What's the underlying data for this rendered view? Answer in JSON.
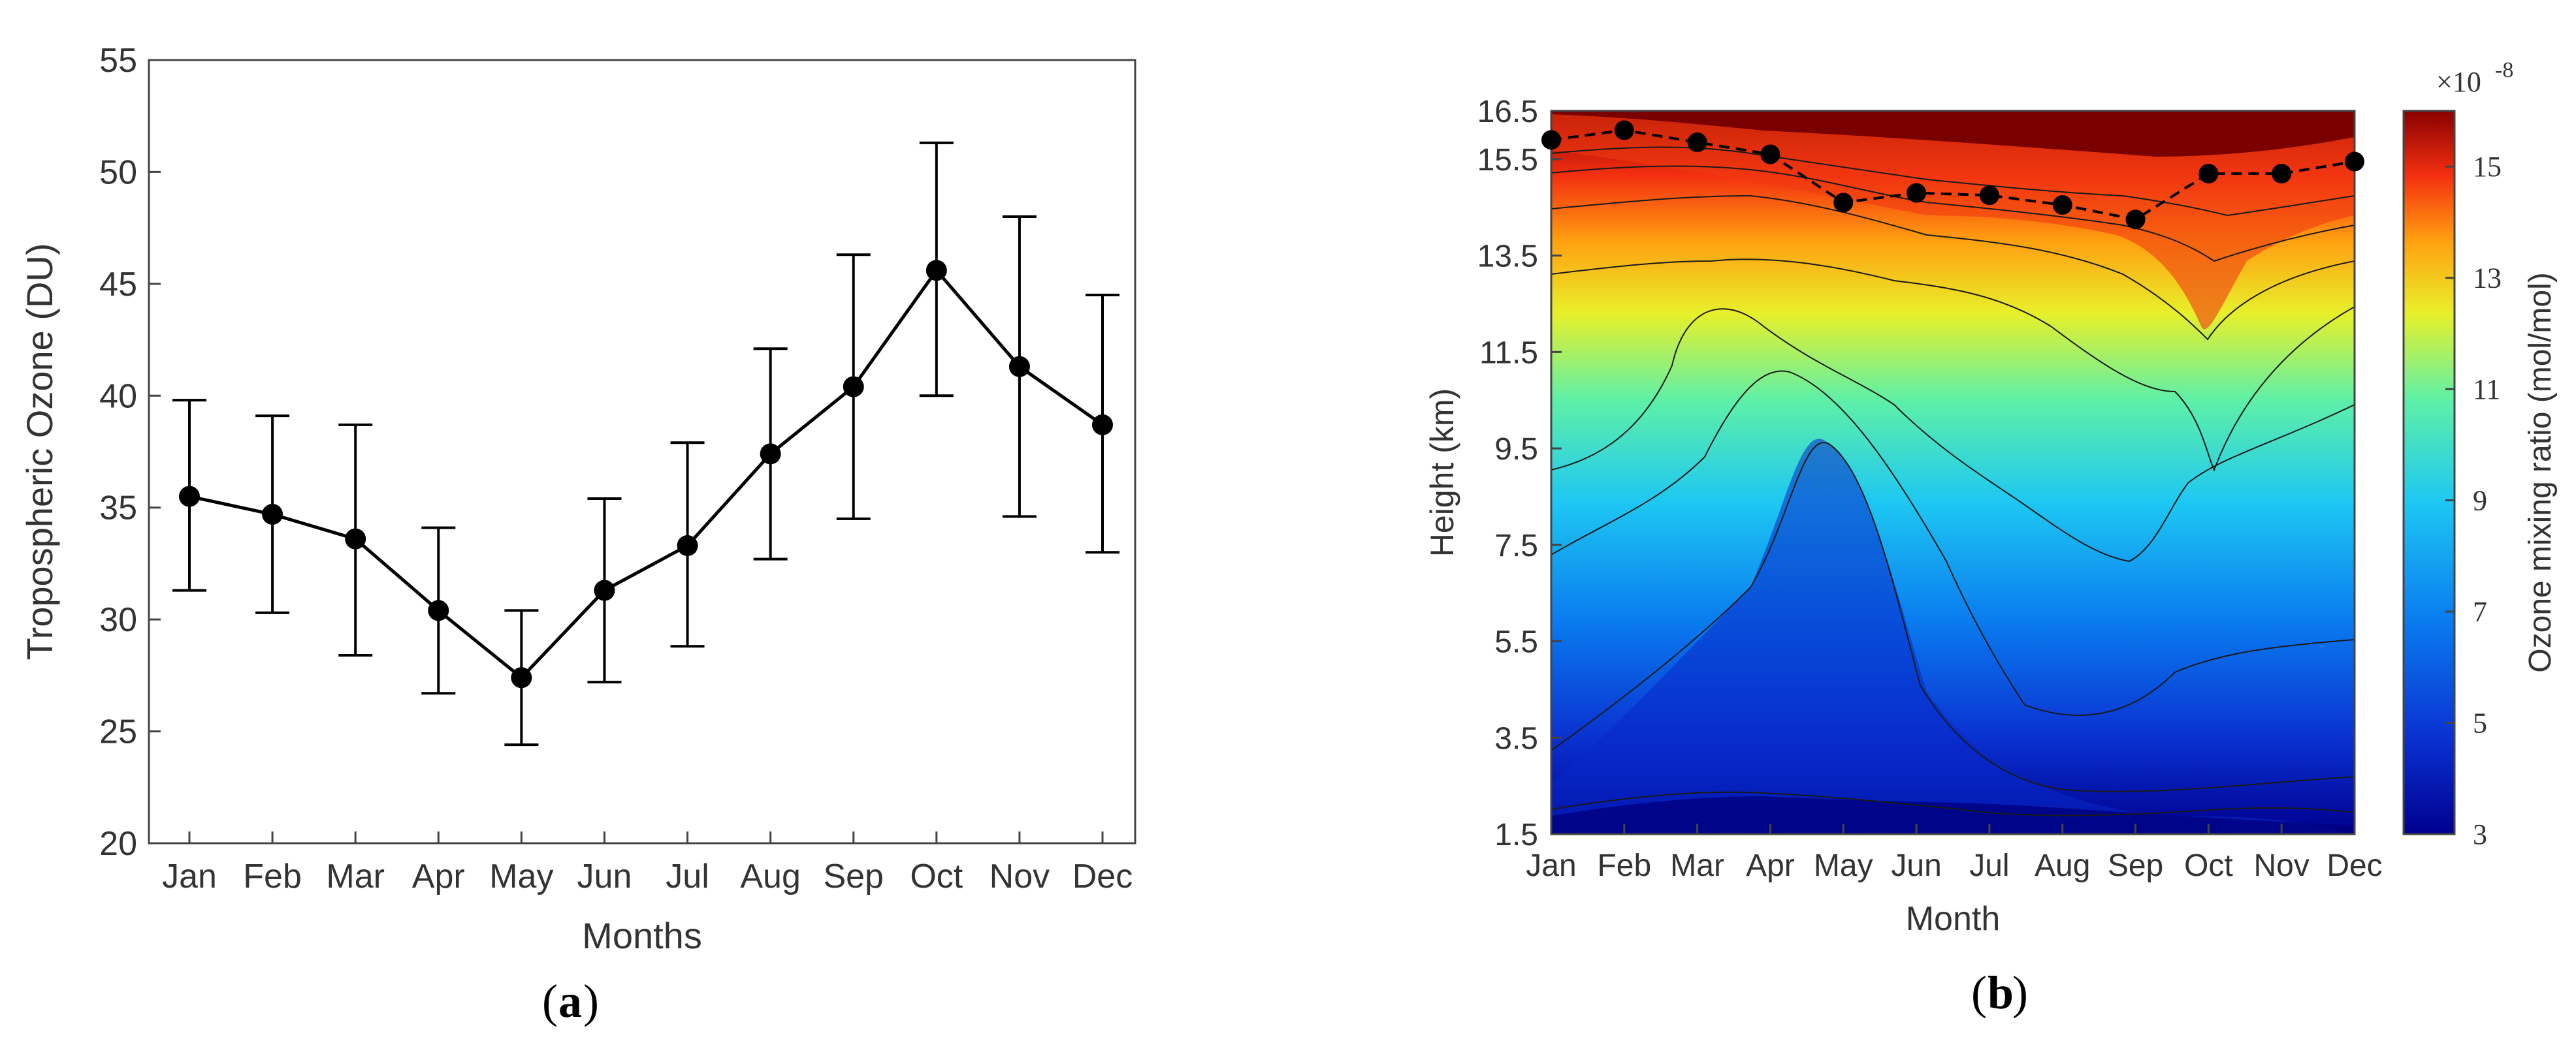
{
  "chart_data": [
    {
      "type": "line",
      "panel_label": "a",
      "title": "",
      "xlabel": "Months",
      "ylabel": "Tropospheric Ozone (DU)",
      "ylim": [
        20,
        55
      ],
      "y_ticks": [
        "20",
        "25",
        "30",
        "35",
        "40",
        "45",
        "50",
        "55"
      ],
      "categories": [
        "Jan",
        "Feb",
        "Mar",
        "Apr",
        "May",
        "Jun",
        "Jul",
        "Aug",
        "Sep",
        "Oct",
        "Nov",
        "Dec"
      ],
      "series": [
        {
          "name": "Tropospheric Ozone",
          "values": [
            35.5,
            34.7,
            33.6,
            30.4,
            27.4,
            31.3,
            33.3,
            37.4,
            40.4,
            45.6,
            41.3,
            38.7
          ],
          "error_upper": [
            39.8,
            39.1,
            38.7,
            34.1,
            30.4,
            35.4,
            37.9,
            42.1,
            46.3,
            51.3,
            48.0,
            44.5
          ],
          "error_lower": [
            31.3,
            30.3,
            28.4,
            26.7,
            24.4,
            27.2,
            28.8,
            32.7,
            34.5,
            40.0,
            34.6,
            33.0
          ]
        }
      ]
    },
    {
      "type": "heatmap",
      "panel_label": "b",
      "title": "",
      "xlabel": "Month",
      "ylabel": "Height (km)",
      "categories": [
        "Jan",
        "Feb",
        "Mar",
        "Apr",
        "May",
        "Jun",
        "Jul",
        "Aug",
        "Sep",
        "Oct",
        "Nov",
        "Dec"
      ],
      "ylim": [
        1.5,
        16.5
      ],
      "y_ticks": [
        "1.5",
        "3.5",
        "5.5",
        "7.5",
        "9.5",
        "11.5",
        "13.5",
        "15.5",
        "16.5"
      ],
      "colorbar": {
        "label": "Ozone mixing ratio (mol/mol)",
        "multiplier": "×10",
        "exponent": "-8",
        "range": [
          3,
          16
        ],
        "ticks": [
          "3",
          "5",
          "7",
          "9",
          "11",
          "13",
          "15"
        ]
      },
      "tropopause_height_km": [
        15.9,
        16.1,
        15.85,
        15.6,
        14.6,
        14.8,
        14.75,
        14.55,
        14.25,
        15.2,
        15.2,
        15.45
      ]
    }
  ]
}
